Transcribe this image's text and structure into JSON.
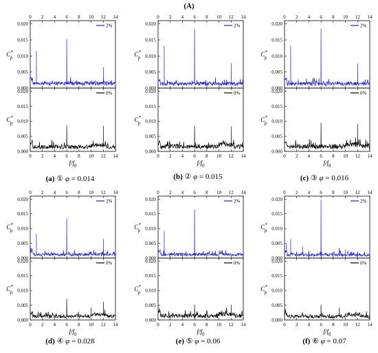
{
  "figure_title": "(A)",
  "chart_data": [
    {
      "type": "line",
      "caption": {
        "letter": "(a)",
        "circ": "①",
        "phi": "φ",
        "value": "= 0.014"
      },
      "xlabel": "f/f0",
      "xlabel_main": "f/f",
      "xlabel_sub": "0",
      "ylabel_main": "C",
      "ylabel_sup": "*",
      "ylabel_sub": "p",
      "xlim": [
        0,
        14
      ],
      "xticks": [
        "0",
        "2",
        "4",
        "6",
        "8",
        "10",
        "12",
        "14"
      ],
      "panels": [
        {
          "position": "top",
          "series": [
            {
              "name": "2%",
              "color": "#1a1aff"
            }
          ],
          "ylim": [
            0,
            0.021
          ],
          "yticks": [
            "0.000",
            "0.005",
            "0.010",
            "0.015",
            "0.020"
          ],
          "legend": "top-right",
          "peaks": [
            [
              0.1,
              0.0035
            ],
            [
              1.0,
              0.0115
            ],
            [
              6.0,
              0.0153
            ],
            [
              12.0,
              0.0065
            ]
          ],
          "baseline": 0.0017,
          "noise": 0.0006,
          "seed": 11
        },
        {
          "position": "bottom",
          "series": [
            {
              "name": "0%",
              "color": "#000000"
            }
          ],
          "ylim": [
            0,
            0.021
          ],
          "yticks": [
            "0.000",
            "0.005",
            "0.010",
            "0.015",
            "0.020"
          ],
          "legend": "top-right",
          "peaks": [
            [
              6.0,
              0.0085
            ],
            [
              12.0,
              0.0085
            ]
          ],
          "baseline": 0.0016,
          "noise": 0.0007,
          "seed": 12
        }
      ]
    },
    {
      "type": "line",
      "caption": {
        "letter": "(b)",
        "circ": "②",
        "phi": "φ",
        "value": "= 0.015"
      },
      "xlabel": "f/f0",
      "xlabel_main": "f/f",
      "xlabel_sub": "0",
      "ylabel_main": "C",
      "ylabel_sup": "*",
      "ylabel_sub": "p",
      "xlim": [
        0,
        14
      ],
      "xticks": [
        "0",
        "2",
        "4",
        "6",
        "8",
        "10",
        "12",
        "14"
      ],
      "panels": [
        {
          "position": "top",
          "series": [
            {
              "name": "2%",
              "color": "#1a1aff"
            }
          ],
          "ylim": [
            0,
            0.021
          ],
          "yticks": [
            "0.000",
            "0.005",
            "0.010",
            "0.015",
            "0.020"
          ],
          "legend": "top-right",
          "peaks": [
            [
              1.0,
              0.0132
            ],
            [
              6.0,
              0.0185
            ],
            [
              12.0,
              0.0078
            ]
          ],
          "baseline": 0.0015,
          "noise": 0.0006,
          "seed": 21
        },
        {
          "position": "bottom",
          "series": [
            {
              "name": "0%",
              "color": "#000000"
            }
          ],
          "ylim": [
            0,
            0.021
          ],
          "yticks": [
            "0.000",
            "0.005",
            "0.010",
            "0.015",
            "0.020"
          ],
          "legend": "top-right",
          "peaks": [
            [
              6.0,
              0.0085
            ],
            [
              12.0,
              0.0083
            ]
          ],
          "baseline": 0.0016,
          "noise": 0.0008,
          "seed": 22
        }
      ]
    },
    {
      "type": "line",
      "caption": {
        "letter": "(c)",
        "circ": "③",
        "phi": "φ",
        "value": "= 0.016"
      },
      "xlabel": "f/f0",
      "xlabel_main": "f/f",
      "xlabel_sub": "0",
      "ylabel_main": "C",
      "ylabel_sup": "*",
      "ylabel_sub": "p",
      "xlim": [
        0,
        14
      ],
      "xticks": [
        "0",
        "2",
        "4",
        "6",
        "8",
        "10",
        "12",
        "14"
      ],
      "panels": [
        {
          "position": "top",
          "series": [
            {
              "name": "2%",
              "color": "#1a1aff"
            }
          ],
          "ylim": [
            0,
            0.021
          ],
          "yticks": [
            "0.000",
            "0.005",
            "0.010",
            "0.015",
            "0.020"
          ],
          "legend": "top-right",
          "peaks": [
            [
              1.0,
              0.0132
            ],
            [
              6.0,
              0.0185
            ],
            [
              12.0,
              0.0077
            ]
          ],
          "baseline": 0.0015,
          "noise": 0.0006,
          "seed": 31
        },
        {
          "position": "bottom",
          "series": [
            {
              "name": "0%",
              "color": "#000000"
            }
          ],
          "ylim": [
            0,
            0.021
          ],
          "yticks": [
            "0.000",
            "0.005",
            "0.010",
            "0.015",
            "0.020"
          ],
          "legend": "top-right",
          "peaks": [
            [
              6.0,
              0.0095
            ],
            [
              12.0,
              0.0092
            ]
          ],
          "baseline": 0.0016,
          "noise": 0.0008,
          "seed": 32
        }
      ]
    },
    {
      "type": "line",
      "caption": {
        "letter": "(d)",
        "circ": "④",
        "phi": "φ",
        "value": "= 0.028"
      },
      "xlabel": "f/f0",
      "xlabel_main": "f/f",
      "xlabel_sub": "0",
      "ylabel_main": "C",
      "ylabel_sup": "*",
      "ylabel_sub": "p",
      "xlim": [
        0,
        14
      ],
      "xticks": [
        "0",
        "2",
        "4",
        "6",
        "8",
        "10",
        "12",
        "14"
      ],
      "panels": [
        {
          "position": "top",
          "series": [
            {
              "name": "2%",
              "color": "#1a1aff"
            }
          ],
          "ylim": [
            0,
            0.021
          ],
          "yticks": [
            "0.000",
            "0.005",
            "0.010",
            "0.015",
            "0.020"
          ],
          "legend": "top-right",
          "peaks": [
            [
              0.1,
              0.0035
            ],
            [
              1.0,
              0.0082
            ],
            [
              6.0,
              0.0135
            ],
            [
              12.0,
              0.0065
            ]
          ],
          "baseline": 0.0014,
          "noise": 0.0005,
          "seed": 41
        },
        {
          "position": "bottom",
          "series": [
            {
              "name": "0%",
              "color": "#000000"
            }
          ],
          "ylim": [
            0,
            0.021
          ],
          "yticks": [
            "0.000",
            "0.005",
            "0.010",
            "0.015",
            "0.020"
          ],
          "legend": "top-right",
          "peaks": [
            [
              6.0,
              0.0072
            ],
            [
              10.0,
              0.0042
            ],
            [
              12.0,
              0.0062
            ]
          ],
          "baseline": 0.0013,
          "noise": 0.0006,
          "seed": 42
        }
      ]
    },
    {
      "type": "line",
      "caption": {
        "letter": "(e)",
        "circ": "⑤",
        "phi": "φ",
        "value": "= 0.06"
      },
      "xlabel": "f/f0",
      "xlabel_main": "f/f",
      "xlabel_sub": "0",
      "ylabel_main": "C",
      "ylabel_sup": "*",
      "ylabel_sub": "p",
      "xlim": [
        0,
        14
      ],
      "xticks": [
        "0",
        "2",
        "4",
        "6",
        "8",
        "10",
        "12",
        "14"
      ],
      "panels": [
        {
          "position": "top",
          "series": [
            {
              "name": "2%",
              "color": "#1a1aff"
            }
          ],
          "ylim": [
            0,
            0.021
          ],
          "yticks": [
            "0.000",
            "0.005",
            "0.010",
            "0.015",
            "0.020"
          ],
          "legend": "top-right",
          "peaks": [
            [
              1.0,
              0.0092
            ],
            [
              6.0,
              0.0165
            ]
          ],
          "baseline": 0.0014,
          "noise": 0.0005,
          "seed": 51
        },
        {
          "position": "bottom",
          "series": [
            {
              "name": "0%",
              "color": "#000000"
            }
          ],
          "ylim": [
            0,
            0.021
          ],
          "yticks": [
            "0.000",
            "0.005",
            "0.010",
            "0.015",
            "0.020"
          ],
          "legend": "top-right",
          "peaks": [
            [
              6.0,
              0.0052
            ],
            [
              12.0,
              0.0052
            ]
          ],
          "baseline": 0.0014,
          "noise": 0.0007,
          "seed": 52
        }
      ]
    },
    {
      "type": "line",
      "caption": {
        "letter": "(f)",
        "circ": "⑥",
        "phi": "φ",
        "value": "= 0.07"
      },
      "xlabel": "f/f0",
      "xlabel_main": "f/f",
      "xlabel_sub": "0",
      "ylabel_main": "C",
      "ylabel_sup": "*",
      "ylabel_sub": "p",
      "xlim": [
        0,
        14
      ],
      "xticks": [
        "0",
        "2",
        "4",
        "6",
        "8",
        "10",
        "12",
        "14"
      ],
      "panels": [
        {
          "position": "top",
          "series": [
            {
              "name": "2%",
              "color": "#1a1aff"
            }
          ],
          "ylim": [
            0,
            0.021
          ],
          "yticks": [
            "0.000",
            "0.005",
            "0.010",
            "0.015",
            "0.020"
          ],
          "legend": "top-right",
          "peaks": [
            [
              0.3,
              0.0048
            ],
            [
              1.0,
              0.0065
            ],
            [
              3.0,
              0.0038
            ],
            [
              6.0,
              0.0198
            ],
            [
              9.0,
              0.0035
            ],
            [
              10.0,
              0.0028
            ],
            [
              12.0,
              0.0022
            ]
          ],
          "baseline": 0.0012,
          "noise": 0.0005,
          "seed": 61
        },
        {
          "position": "bottom",
          "series": [
            {
              "name": "0%",
              "color": "#000000"
            }
          ],
          "ylim": [
            0,
            0.021
          ],
          "yticks": [
            "0.000",
            "0.005",
            "0.010",
            "0.015",
            "0.020"
          ],
          "legend": "top-right",
          "peaks": [
            [
              0.2,
              0.0032
            ],
            [
              6.0,
              0.0052
            ],
            [
              9.0,
              0.0042
            ],
            [
              12.0,
              0.0025
            ]
          ],
          "baseline": 0.0012,
          "noise": 0.0006,
          "seed": 62
        }
      ]
    }
  ]
}
